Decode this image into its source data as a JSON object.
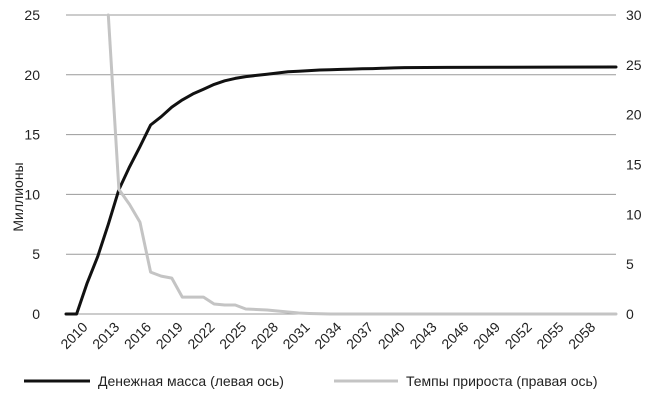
{
  "chart_data": {
    "type": "line",
    "title": "",
    "xlabel": "",
    "ylabel": "Миллионы",
    "y_left_ticks": [
      "0",
      "5",
      "10",
      "15",
      "20",
      "25"
    ],
    "y_right_ticks": [
      "0",
      "5",
      "10",
      "15",
      "20",
      "25",
      "30"
    ],
    "ylim_left": [
      0,
      25
    ],
    "ylim_right": [
      0,
      30
    ],
    "xlim": [
      2009,
      2061
    ],
    "x_tick_labels": [
      "2010",
      "2013",
      "2016",
      "2019",
      "2022",
      "2025",
      "2028",
      "2031",
      "2034",
      "2037",
      "2040",
      "2043",
      "2046",
      "2049",
      "2052",
      "2055",
      "2058"
    ],
    "grid": "horizontal",
    "legend_position": "bottom",
    "series": [
      {
        "name": "Денежная масса (левая ось)",
        "axis": "left",
        "color": "#111111",
        "x": [
          2009,
          2010,
          2011,
          2012,
          2013,
          2014,
          2015,
          2016,
          2017,
          2018,
          2019,
          2020,
          2021,
          2022,
          2023,
          2024,
          2025,
          2026,
          2027,
          2028,
          2029,
          2030,
          2031,
          2032,
          2033,
          2034,
          2035,
          2036,
          2037,
          2038,
          2039,
          2040,
          2041,
          2045,
          2050,
          2055,
          2061
        ],
        "values": [
          0,
          0,
          2.6,
          4.8,
          7.5,
          10.4,
          12.3,
          14.0,
          15.8,
          16.5,
          17.3,
          17.9,
          18.4,
          18.8,
          19.2,
          19.5,
          19.7,
          19.85,
          19.95,
          20.05,
          20.15,
          20.25,
          20.3,
          20.35,
          20.4,
          20.42,
          20.45,
          20.48,
          20.5,
          20.52,
          20.55,
          20.58,
          20.6,
          20.62,
          20.63,
          20.64,
          20.65
        ]
      },
      {
        "name": "Темпы прироста (правая ось)",
        "axis": "right",
        "color": "#c4c4c4",
        "x": [
          2013,
          2014,
          2015,
          2016,
          2017,
          2018,
          2019,
          2020,
          2021,
          2022,
          2023,
          2024,
          2025,
          2026,
          2027,
          2028,
          2029,
          2030,
          2031,
          2032,
          2033,
          2034,
          2040,
          2041,
          2061
        ],
        "values": [
          30,
          12.5,
          11,
          9.2,
          4.2,
          3.8,
          3.6,
          1.7,
          1.7,
          1.7,
          1.0,
          0.9,
          0.9,
          0.5,
          0.45,
          0.4,
          0.3,
          0.2,
          0.1,
          0.05,
          0.02,
          0.0,
          0.0,
          0.0,
          0.0
        ]
      }
    ]
  }
}
